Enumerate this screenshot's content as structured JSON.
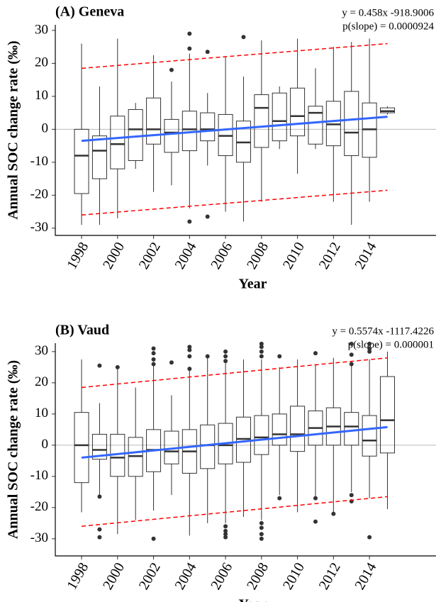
{
  "chart_data": [
    {
      "type": "box",
      "title": "(A) Geneva",
      "annotations": [
        "y = 0.458x -918.9006",
        "p(slope) = 0.0000924"
      ],
      "x_label": "Year",
      "y_label": "Annual SOC change rate (‰)",
      "x": [
        1998,
        1999,
        2000,
        2001,
        2002,
        2003,
        2004,
        2005,
        2006,
        2007,
        2008,
        2009,
        2010,
        2011,
        2012,
        2013,
        2014,
        2015
      ],
      "low": [
        -29,
        -29,
        -27,
        -12,
        -19,
        -17,
        -24,
        -11,
        -25,
        -28,
        -22,
        -6,
        -13.5,
        -6,
        -22,
        -29,
        -22,
        4.5
      ],
      "q1": [
        -19.5,
        -15,
        -12,
        -9.5,
        -4.5,
        -7,
        -6.5,
        -3.5,
        -8,
        -10,
        -5.5,
        -3.5,
        -2,
        -4.5,
        -5,
        -8,
        -8.5,
        5
      ],
      "median": [
        -8,
        -6.5,
        -4.5,
        0,
        0,
        -1,
        0,
        0,
        -2,
        -4,
        6.5,
        2.5,
        4,
        5,
        1.5,
        -1,
        0,
        5.5
      ],
      "q3": [
        0,
        -2,
        4,
        6,
        9.5,
        3,
        5.5,
        5,
        4.5,
        2.5,
        10.5,
        11,
        12.5,
        7,
        8.5,
        11.5,
        8,
        6.5
      ],
      "high": [
        26,
        13,
        27.5,
        8,
        22.5,
        14.5,
        23,
        11,
        22,
        16,
        27,
        13,
        27.5,
        18.5,
        25,
        26.5,
        27.5,
        7
      ],
      "outliers": [
        {
          "x": 2003,
          "y": 18
        },
        {
          "x": 2004,
          "y": 29
        },
        {
          "x": 2004,
          "y": 24.5
        },
        {
          "x": 2004,
          "y": -28
        },
        {
          "x": 2005,
          "y": 23.5
        },
        {
          "x": 2005,
          "y": -26.5
        },
        {
          "x": 2007,
          "y": 28
        }
      ],
      "trend": {
        "x": [
          1998,
          2015
        ],
        "values": [
          -3.5,
          3.8
        ],
        "color": "#3366ff"
      },
      "bands": [
        {
          "x": [
            1998,
            2015
          ],
          "values": [
            18.5,
            26
          ],
          "color": "#ff0000"
        },
        {
          "x": [
            1998,
            2015
          ],
          "values": [
            -26,
            -18.5
          ],
          "color": "#ff0000"
        }
      ],
      "hline": 0,
      "xlim": [
        1996.54,
        2017.7
      ],
      "ylim": [
        -32.2,
        31.7
      ],
      "xticks": [
        1998,
        2000,
        2002,
        2004,
        2006,
        2008,
        2010,
        2012,
        2014
      ],
      "yticks": [
        -30,
        -20,
        -10,
        0,
        10,
        20,
        30
      ]
    },
    {
      "type": "box",
      "title": "(B) Vaud",
      "annotations": [
        "y = 0.5574x -1117.4226",
        "p(slope) = 0.000001"
      ],
      "x_label": "Year",
      "y_label": "Annual SOC change rate (‰)",
      "x": [
        1998,
        1999,
        2000,
        2001,
        2002,
        2003,
        2004,
        2005,
        2006,
        2007,
        2008,
        2009,
        2010,
        2011,
        2012,
        2013,
        2014,
        2015
      ],
      "low": [
        -21.5,
        -16,
        -28.5,
        -24,
        -21,
        -16,
        -29,
        -25,
        -25,
        -23,
        -24,
        -16,
        -21.5,
        -17,
        -21.5,
        -15,
        -17,
        -20.5
      ],
      "q1": [
        -12,
        -4.5,
        -10,
        -10,
        -8.5,
        -6,
        -9,
        -7.5,
        -6,
        -5.5,
        -3,
        0,
        -2,
        0,
        0,
        0,
        -3.5,
        -2.5
      ],
      "median": [
        0,
        -1.5,
        -4,
        -3.5,
        -1.5,
        -2,
        -2,
        0,
        0,
        2,
        2.5,
        3.5,
        3.5,
        5.5,
        6,
        6,
        1.5,
        8
      ],
      "q3": [
        10.5,
        3.5,
        3.5,
        2.5,
        5,
        4.5,
        5,
        6.5,
        7,
        9,
        9.5,
        10,
        12.5,
        11,
        12,
        10.5,
        9.5,
        22
      ],
      "high": [
        27.5,
        13.5,
        24.5,
        18.5,
        26,
        16,
        24,
        28,
        26.5,
        27.5,
        27.5,
        25,
        27.5,
        26,
        28,
        27,
        27.5,
        30
      ],
      "outliers": [
        {
          "x": 1999,
          "y": 25.5
        },
        {
          "x": 1999,
          "y": -16.5
        },
        {
          "x": 1999,
          "y": -27
        },
        {
          "x": 1999,
          "y": -29.5
        },
        {
          "x": 2000,
          "y": 25
        },
        {
          "x": 2002,
          "y": 31
        },
        {
          "x": 2002,
          "y": 29.5
        },
        {
          "x": 2002,
          "y": 27.5
        },
        {
          "x": 2002,
          "y": 26
        },
        {
          "x": 2002,
          "y": -30
        },
        {
          "x": 2003,
          "y": 26.5
        },
        {
          "x": 2004,
          "y": 31.5
        },
        {
          "x": 2004,
          "y": 30.5
        },
        {
          "x": 2004,
          "y": 28.5
        },
        {
          "x": 2004,
          "y": 24.5
        },
        {
          "x": 2005,
          "y": 28.5
        },
        {
          "x": 2006,
          "y": 30
        },
        {
          "x": 2006,
          "y": 28.5
        },
        {
          "x": 2006,
          "y": 27
        },
        {
          "x": 2006,
          "y": -26
        },
        {
          "x": 2006,
          "y": -27.5
        },
        {
          "x": 2006,
          "y": -28.5
        },
        {
          "x": 2006,
          "y": -29.5
        },
        {
          "x": 2008,
          "y": 32.5
        },
        {
          "x": 2008,
          "y": 31.5
        },
        {
          "x": 2008,
          "y": 30
        },
        {
          "x": 2008,
          "y": 28.5
        },
        {
          "x": 2008,
          "y": -25
        },
        {
          "x": 2008,
          "y": -26.5
        },
        {
          "x": 2008,
          "y": -28.5
        },
        {
          "x": 2008,
          "y": -30
        },
        {
          "x": 2009,
          "y": 28.5
        },
        {
          "x": 2009,
          "y": -17
        },
        {
          "x": 2011,
          "y": 29.5
        },
        {
          "x": 2011,
          "y": -17
        },
        {
          "x": 2011,
          "y": -24.5
        },
        {
          "x": 2012,
          "y": -22
        },
        {
          "x": 2013,
          "y": 32.5
        },
        {
          "x": 2013,
          "y": 29
        },
        {
          "x": 2013,
          "y": 26
        },
        {
          "x": 2013,
          "y": -16
        },
        {
          "x": 2013,
          "y": -18
        },
        {
          "x": 2014,
          "y": 32.5
        },
        {
          "x": 2014,
          "y": 31
        },
        {
          "x": 2014,
          "y": 30
        },
        {
          "x": 2014,
          "y": -29.5
        }
      ],
      "trend": {
        "x": [
          1998,
          2015
        ],
        "values": [
          -4,
          5.8
        ],
        "color": "#3366ff"
      },
      "bands": [
        {
          "x": [
            1998,
            2015
          ],
          "values": [
            18.5,
            28
          ],
          "color": "#ff0000"
        },
        {
          "x": [
            1998,
            2015
          ],
          "values": [
            -26,
            -16.5
          ],
          "color": "#ff0000"
        }
      ],
      "hline": 0,
      "xlim": [
        1996.54,
        2017.7
      ],
      "ylim": [
        -35.5,
        32.7
      ],
      "xticks": [
        1998,
        2000,
        2002,
        2004,
        2006,
        2008,
        2010,
        2012,
        2014
      ],
      "yticks": [
        -30,
        -20,
        -10,
        0,
        10,
        20,
        30
      ]
    }
  ]
}
